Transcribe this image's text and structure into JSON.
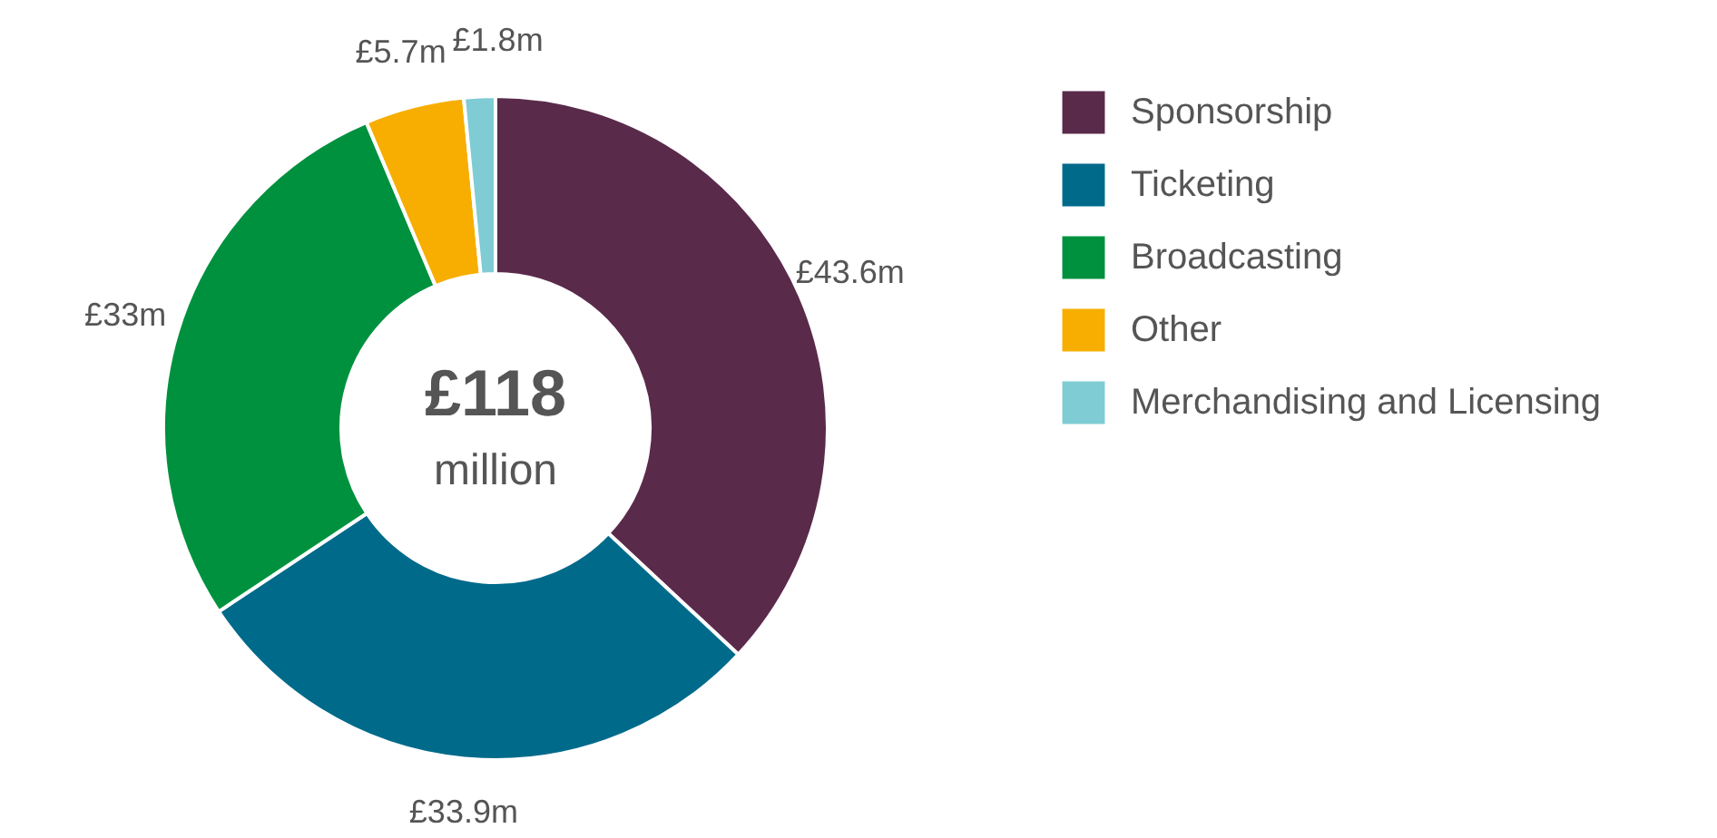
{
  "chart_data": {
    "type": "donut",
    "categories": [
      "Sponsorship",
      "Ticketing",
      "Broadcasting",
      "Other",
      "Merchandising and Licensing"
    ],
    "values": [
      43.6,
      33.9,
      33,
      5.7,
      1.8
    ],
    "colors": [
      "#5a2a4b",
      "#006a8a",
      "#00913f",
      "#f7ae00",
      "#7fccd4"
    ],
    "value_labels": [
      "£43.6m",
      "£33.9m",
      "£33m",
      "£5.7m",
      "£1.8m"
    ],
    "annotations": [
      "£118",
      "million"
    ],
    "legend": "right"
  }
}
